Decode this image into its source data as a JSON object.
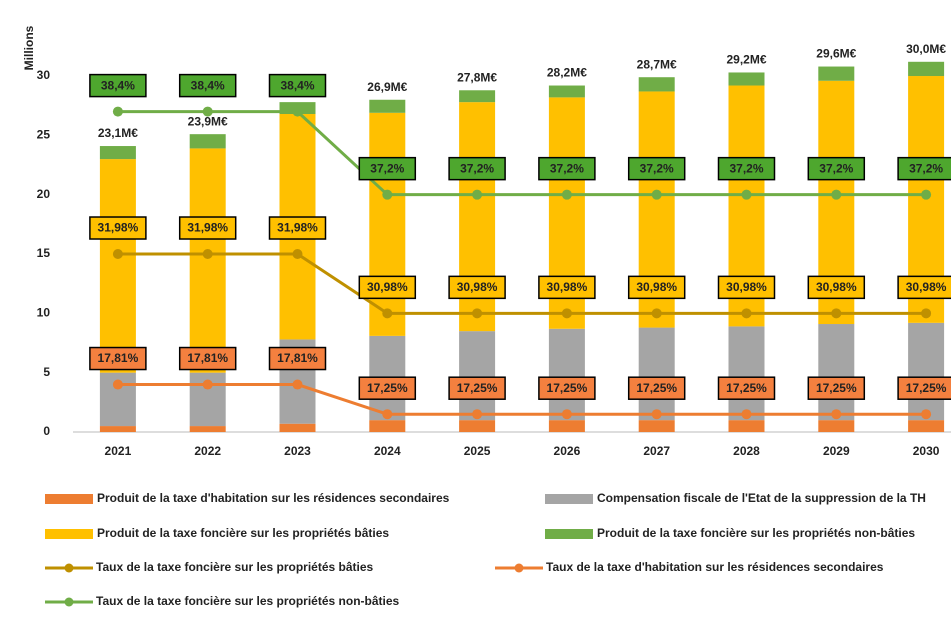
{
  "chart_data": {
    "type": "bar",
    "stacked": true,
    "ylabel": "Millions",
    "categories": [
      "2021",
      "2022",
      "2023",
      "2024",
      "2025",
      "2026",
      "2027",
      "2028",
      "2029",
      "2030"
    ],
    "ylim": [
      0,
      35
    ],
    "yticks": [
      0,
      5,
      10,
      15,
      20,
      25,
      30
    ],
    "series": [
      {
        "name": "Produit de la taxe d'habitation sur les résidences secondaires",
        "color": "#ed7d31",
        "values": [
          0.5,
          0.5,
          0.7,
          1,
          1,
          1,
          1,
          1,
          1,
          1
        ]
      },
      {
        "name": "Compensation fiscale de l'Etat de la suppression de la TH",
        "color": "#a5a5a5",
        "values": [
          4.5,
          4.5,
          7.1,
          7.1,
          7.5,
          7.7,
          7.8,
          7.9,
          8.1,
          8.2
        ]
      },
      {
        "name": "Produit de la taxe foncière sur les propriétés bâties",
        "color": "#ffc000",
        "values": [
          18.0,
          18.9,
          19.0,
          18.8,
          19.3,
          19.5,
          19.9,
          20.3,
          20.5,
          20.8
        ]
      },
      {
        "name": "Produit de la taxe foncière sur les propriétés non-bâties",
        "color": "#70ad47",
        "values": [
          1.1,
          1.2,
          1.0,
          1.1,
          1.0,
          1.0,
          1.2,
          1.1,
          1.2,
          1.2
        ]
      },
      {
        "name": "Taux de la taxe foncière sur les propriétés bâties",
        "type": "line",
        "color": "#bf9000",
        "box": "#ffc000",
        "ylim": [
          28.98,
          35.98
        ],
        "values": [
          31.98,
          31.98,
          31.98,
          30.98,
          30.98,
          30.98,
          30.98,
          30.98,
          30.98,
          30.98
        ],
        "value_labels": [
          "31,98%",
          "31,98%",
          "31,98%",
          "30,98%",
          "30,98%",
          "30,98%",
          "30,98%",
          "30,98%",
          "30,98%",
          "30,98%"
        ]
      },
      {
        "name": "Taux de la taxe d'habitation sur les résidences secondaires",
        "type": "line",
        "color": "#ed7d31",
        "box": "#f4803f",
        "ylim": [
          16.914,
          24.754
        ],
        "values": [
          17.81,
          17.81,
          17.81,
          17.25,
          17.25,
          17.25,
          17.25,
          17.25,
          17.25,
          17.25
        ],
        "value_labels": [
          "17,81%",
          "17,81%",
          "17,81%",
          "17,25%",
          "17,25%",
          "17,25%",
          "17,25%",
          "17,25%",
          "17,25%",
          "17,25%"
        ]
      },
      {
        "name": "Taux de la taxe foncière sur les propriétés non-bâties",
        "type": "line",
        "color": "#70ad47",
        "box": "#4ea72e",
        "ylim": [
          33.771,
          39.771
        ],
        "values": [
          38.4,
          38.4,
          38.4,
          37.2,
          37.2,
          37.2,
          37.2,
          37.2,
          37.2,
          37.2
        ],
        "value_labels": [
          "38,4%",
          "38,4%",
          "38,4%",
          "37,2%",
          "37,2%",
          "37,2%",
          "37,2%",
          "37,2%",
          "37,2%",
          "37,2%"
        ]
      }
    ],
    "total_labels": [
      {
        "value": 23.1,
        "label": "23,1M€"
      },
      {
        "value": 23.9,
        "label": "23,9M€"
      },
      null,
      {
        "value": 26.9,
        "label": "26,9M€"
      },
      {
        "value": 27.8,
        "label": "27,8M€"
      },
      {
        "value": 28.2,
        "label": "28,2M€"
      },
      {
        "value": 28.7,
        "label": "28,7M€"
      },
      {
        "value": 29.2,
        "label": "29,2M€"
      },
      {
        "value": 29.6,
        "label": "29,6M€"
      },
      {
        "value": 30.0,
        "label": "30,0M€"
      }
    ]
  }
}
